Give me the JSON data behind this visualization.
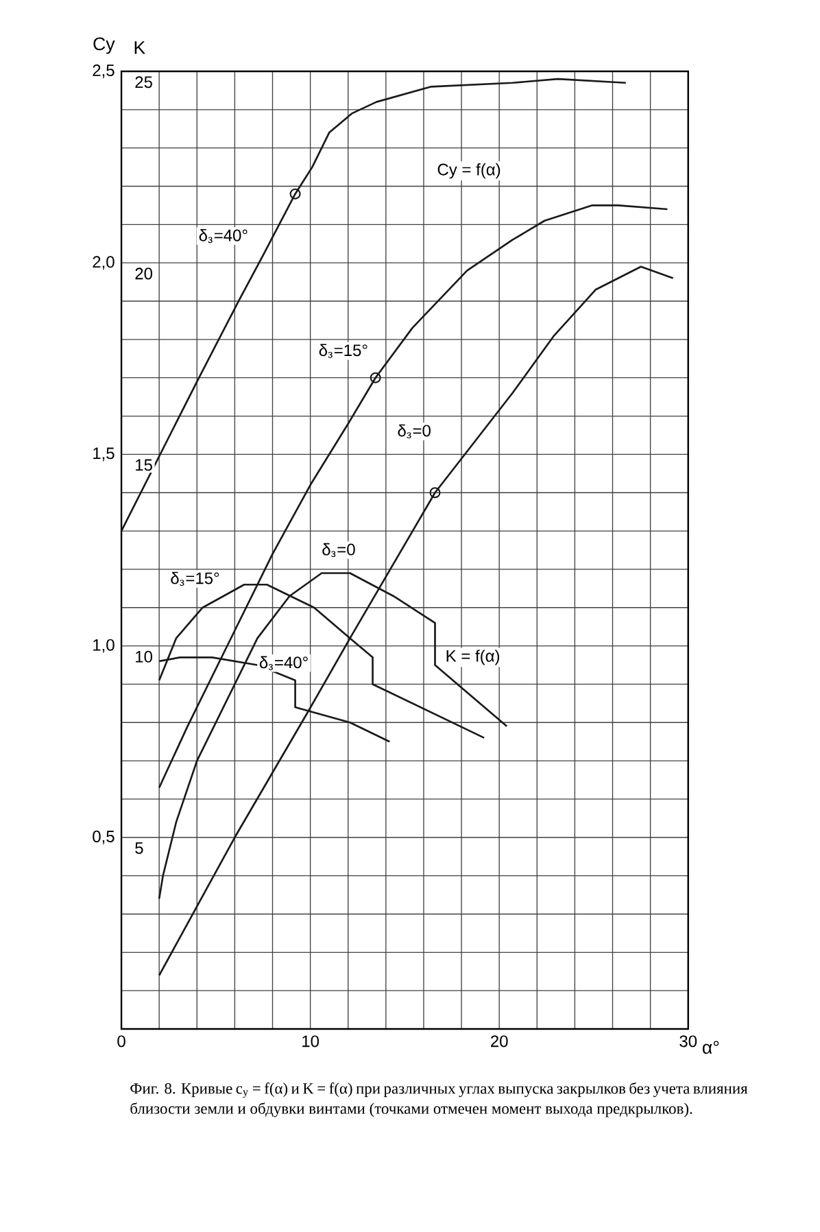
{
  "chart_data": {
    "type": "line",
    "xlabel": "α°",
    "ylabel": "Cy",
    "y2label": "K",
    "xlim": [
      0,
      30
    ],
    "ylim": [
      0,
      2.5
    ],
    "y2lim": [
      0,
      25
    ],
    "xticks": [
      0,
      {
        "value": 2,
        "label": null
      },
      {
        "value": 4,
        "label": null
      },
      {
        "value": 6,
        "label": null
      },
      {
        "value": 8,
        "label": null
      },
      10,
      {
        "value": 12,
        "label": null
      },
      {
        "value": 14,
        "label": null
      },
      {
        "value": 16,
        "label": null
      },
      {
        "value": 18,
        "label": null
      },
      20,
      {
        "value": 22,
        "label": null
      },
      {
        "value": 24,
        "label": null
      },
      {
        "value": 26,
        "label": null
      },
      {
        "value": 28,
        "label": null
      },
      30
    ],
    "yticks": [
      {
        "value": 0,
        "label": null
      },
      {
        "value": 0.1,
        "label": null
      },
      {
        "value": 0.2,
        "label": null
      },
      {
        "value": 0.3,
        "label": null
      },
      {
        "value": 0.4,
        "label": null
      },
      {
        "value": 0.5,
        "label": "0,5"
      },
      {
        "value": 0.6,
        "label": null
      },
      {
        "value": 0.7,
        "label": null
      },
      {
        "value": 0.8,
        "label": null
      },
      {
        "value": 0.9,
        "label": null
      },
      {
        "value": 1.0,
        "label": "1,0"
      },
      {
        "value": 1.1,
        "label": null
      },
      {
        "value": 1.2,
        "label": null
      },
      {
        "value": 1.3,
        "label": null
      },
      {
        "value": 1.4,
        "label": null
      },
      {
        "value": 1.5,
        "label": "1,5"
      },
      {
        "value": 1.6,
        "label": null
      },
      {
        "value": 1.7,
        "label": null
      },
      {
        "value": 1.8,
        "label": null
      },
      {
        "value": 1.9,
        "label": null
      },
      {
        "value": 2.0,
        "label": "2,0"
      },
      {
        "value": 2.1,
        "label": null
      },
      {
        "value": 2.2,
        "label": null
      },
      {
        "value": 2.3,
        "label": null
      },
      {
        "value": 2.4,
        "label": null
      },
      {
        "value": 2.5,
        "label": "2,5"
      }
    ],
    "y2ticks": [
      5,
      10,
      15,
      20,
      25
    ],
    "grid": true,
    "series": [
      {
        "name": "δ$_{з}$=40°",
        "color": "#1a1a1a",
        "x": [
          0,
          4,
          6.2,
          7.5,
          9.2,
          10.1,
          11,
          12.2,
          13.5,
          16.4,
          20.7,
          23.1,
          26.7
        ],
        "values": [
          1.3,
          1.69,
          1.9,
          2.02,
          2.18,
          2.25,
          2.34,
          2.39,
          2.42,
          2.46,
          2.47,
          2.48,
          2.47
        ]
      },
      {
        "name": "δ$_{з}$=15°",
        "color": "#1a1a1a",
        "x": [
          2,
          3.5,
          6,
          8,
          10,
          12,
          13.45,
          15.4,
          18.3,
          20.7,
          22.4,
          24.9,
          26.3,
          28.9
        ],
        "values": [
          0.63,
          0.79,
          1.04,
          1.24,
          1.42,
          1.58,
          1.7,
          1.83,
          1.98,
          2.06,
          2.11,
          2.15,
          2.15,
          2.14
        ]
      },
      {
        "name": "δ$_{з}$=0",
        "color": "#1a1a1a",
        "x": [
          2,
          6,
          9.9,
          12.1,
          16.6,
          20.7,
          22.9,
          25.1,
          27.5,
          29.2
        ],
        "values": [
          0.14,
          0.5,
          0.83,
          1.02,
          1.4,
          1.66,
          1.81,
          1.93,
          1.99,
          1.96
        ]
      },
      {
        "name": "δ$_{з}$=15°",
        "axis": "y2",
        "color": "#1a1a1a",
        "x": [
          2,
          2.9,
          4.3,
          6.5,
          7.7,
          10.2,
          12.1,
          13.3,
          13.3,
          19.2
        ],
        "values": [
          9.1,
          10.2,
          11.0,
          11.6,
          11.6,
          11.0,
          10.2,
          9.7,
          9.0,
          7.6
        ]
      },
      {
        "name": "δ$_{з}$=0",
        "axis": "y2",
        "color": "#1a1a1a",
        "x": [
          2,
          2.2,
          2.9,
          4,
          5.6,
          7.2,
          8.9,
          10.6,
          12.1,
          14.4,
          16.6,
          16.6,
          20.4
        ],
        "values": [
          3.4,
          4.0,
          5.4,
          7.0,
          8.6,
          10.2,
          11.3,
          11.9,
          11.9,
          11.3,
          10.6,
          9.5,
          7.9
        ]
      },
      {
        "name": "δ$_{з}$=40°",
        "axis": "y2",
        "color": "#1a1a1a",
        "x": [
          2,
          3.1,
          4.8,
          7.2,
          9.2,
          9.2,
          12.1,
          14.2
        ],
        "values": [
          9.6,
          9.7,
          9.7,
          9.5,
          9.1,
          8.4,
          8.0,
          7.5
        ]
      },
      {
        "type": "scatter",
        "marker": "circle",
        "color": "#1a1a1a",
        "x": [
          9.2,
          13.45,
          16.6
        ],
        "values": [
          2.18,
          1.7,
          1.4
        ]
      }
    ],
    "annotations": [
      "Cy = f(α)",
      "K = f(α)",
      "Фиг. 8. Кривые c$_{y}$ = f(α) и K = f(α) при различных углах выпуска закрылков без учета влияния близости земли и обдувки винтами (точками отмечен момент выхода предкрылков)."
    ]
  }
}
